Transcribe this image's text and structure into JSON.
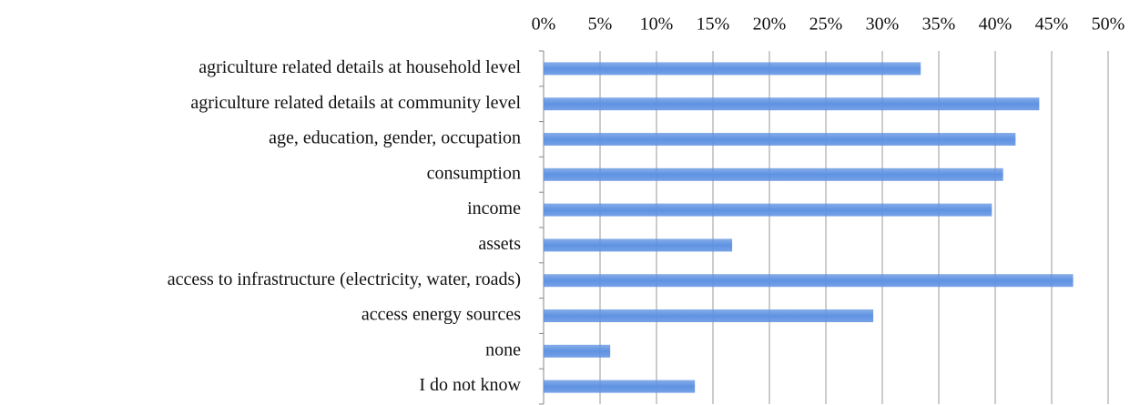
{
  "chart_data": {
    "type": "bar",
    "orientation": "horizontal",
    "categories": [
      "agriculture related details at household level",
      "agriculture related details at community level",
      "age, education, gender, occupation",
      "consumption",
      "income",
      "assets",
      "access to infrastructure (electricity, water, roads)",
      "access energy sources",
      "none",
      "I do not know"
    ],
    "values": [
      33.4,
      43.9,
      41.8,
      40.7,
      39.7,
      16.7,
      46.9,
      29.2,
      5.9,
      13.4
    ],
    "color": "#5f92e2",
    "xlim": [
      0,
      50
    ],
    "xticks": [
      {
        "value": 0,
        "label": "0%"
      },
      {
        "value": 5,
        "label": "5%"
      },
      {
        "value": 10,
        "label": "10%"
      },
      {
        "value": 15,
        "label": "15%"
      },
      {
        "value": 20,
        "label": "20%"
      },
      {
        "value": 25,
        "label": "25%"
      },
      {
        "value": 30,
        "label": "30%"
      },
      {
        "value": 35,
        "label": "35%"
      },
      {
        "value": 40,
        "label": "40%"
      },
      {
        "value": 45,
        "label": "45%"
      },
      {
        "value": 50,
        "label": "50%"
      }
    ],
    "grid": true
  }
}
